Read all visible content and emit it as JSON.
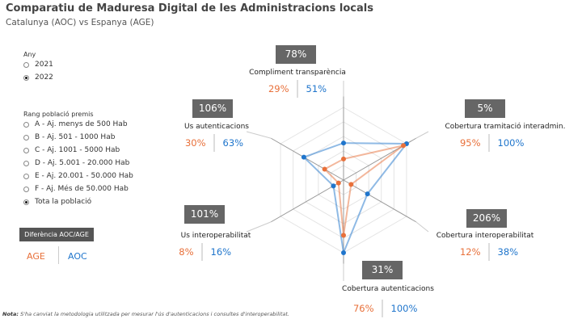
{
  "header": {
    "title": "Comparatiu de Maduresa Digital de les Administracions locals",
    "subtitle": "Catalunya (AOC) vs Espanya (AGE)"
  },
  "filters": {
    "year": {
      "label": "Any",
      "options": [
        {
          "label": "2021",
          "selected": false
        },
        {
          "label": "2022",
          "selected": true
        }
      ]
    },
    "population": {
      "label": "Rang població premis",
      "options": [
        {
          "label": "A - Aj. menys de 500 Hab",
          "selected": false
        },
        {
          "label": "B - Aj. 501 - 1000 Hab",
          "selected": false
        },
        {
          "label": "C - Aj. 1001 - 5000 Hab",
          "selected": false
        },
        {
          "label": "D - Aj. 5.001 - 20.000 Hab",
          "selected": false
        },
        {
          "label": "E - Aj. 20.001 - 50.000 Hab",
          "selected": false
        },
        {
          "label": "F - Aj. Més de 50.000 Hab",
          "selected": false
        },
        {
          "label": "Tota la població",
          "selected": true
        }
      ]
    }
  },
  "legend": {
    "title": "Diferència AOC/AGE",
    "age": "AGE",
    "aoc": "AOC"
  },
  "colors": {
    "age": "#e8703a",
    "aoc": "#1f75cc"
  },
  "metrics": [
    {
      "name": "Compliment transparència",
      "diff": "78%",
      "age": "29%",
      "aoc": "51%"
    },
    {
      "name": "Cobertura tramitació interadmin.",
      "diff": "5%",
      "age": "95%",
      "aoc": "100%"
    },
    {
      "name": "Cobertura interoperabilitat",
      "diff": "206%",
      "age": "12%",
      "aoc": "38%"
    },
    {
      "name": "Cobertura autenticacions",
      "diff": "31%",
      "age": "76%",
      "aoc": "100%"
    },
    {
      "name": "Us interoperabilitat",
      "diff": "101%",
      "age": "8%",
      "aoc": "16%"
    },
    {
      "name": "Us autenticacions",
      "diff": "106%",
      "age": "30%",
      "aoc": "63%"
    }
  ],
  "chart_data": {
    "type": "radar",
    "axes": [
      "Compliment transparència",
      "Cobertura tramitació interadmin.",
      "Cobertura interoperabilitat",
      "Cobertura autenticacions",
      "Us interoperabilitat",
      "Us autenticacions"
    ],
    "series": [
      {
        "name": "AGE",
        "values": [
          29,
          95,
          12,
          76,
          8,
          30
        ]
      },
      {
        "name": "AOC",
        "values": [
          51,
          100,
          38,
          100,
          16,
          63
        ]
      }
    ],
    "range": [
      0,
      100
    ]
  },
  "note": {
    "prefix": "Nota:",
    "text": " S'ha canviat la metodologia utilitzada per mesurar l'ús d'autenticacions i consultes d'interoperabilitat."
  }
}
